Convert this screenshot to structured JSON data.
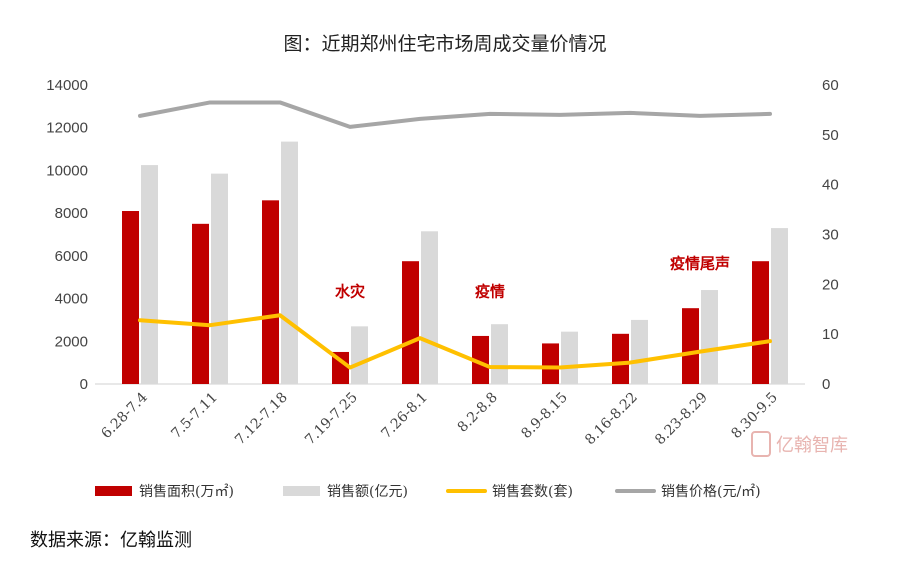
{
  "chart_data": {
    "type": "bar",
    "title": "图：近期郑州住宅市场周成交量价情况",
    "categories": [
      "6.28-7.4",
      "7.5-7.11",
      "7.12-7.18",
      "7.19-7.25",
      "7.26-8.1",
      "8.2-8.8",
      "8.9-8.15",
      "8.16-8.22",
      "8.23-8.29",
      "8.30-9.5"
    ],
    "ylim_left": [
      0,
      14000
    ],
    "yticks_left": [
      "0",
      "2000",
      "4000",
      "6000",
      "8000",
      "10000",
      "12000",
      "14000"
    ],
    "ylim_right": [
      0,
      60
    ],
    "yticks_right": [
      "0",
      "10",
      "20",
      "30",
      "40",
      "50",
      "60"
    ],
    "series": [
      {
        "name": "销售面积(万㎡)",
        "type": "bar",
        "axis": "left",
        "color": "#c00000",
        "values": [
          8100,
          7500,
          8600,
          1500,
          5750,
          2250,
          1900,
          2350,
          3550,
          5750
        ]
      },
      {
        "name": "销售额(亿元)",
        "type": "bar",
        "axis": "left",
        "color": "#d9d9d9",
        "values": [
          10250,
          9850,
          11350,
          2700,
          7150,
          2800,
          2450,
          3000,
          4400,
          7300
        ]
      },
      {
        "name": "销售套数(套)",
        "type": "line",
        "axis": "right",
        "color": "#ffc000",
        "values": [
          12.8,
          11.8,
          13.8,
          3.3,
          9.2,
          3.4,
          3.3,
          4.3,
          6.5,
          8.6
        ]
      },
      {
        "name": "销售价格(元/㎡)",
        "type": "line",
        "axis": "right",
        "color": "#a6a6a6",
        "values": [
          53.8,
          56.5,
          56.5,
          51.6,
          53.2,
          54.2,
          54.0,
          54.4,
          53.8,
          54.2
        ]
      }
    ],
    "annotations": [
      {
        "text": "水灾",
        "category_index": 3,
        "value_left": 4100
      },
      {
        "text": "疫情",
        "category_index": 5,
        "value_left": 4100
      },
      {
        "text": "疫情尾声",
        "category_index": 8,
        "value_left": 5400
      }
    ],
    "legend_position": "bottom",
    "grid": false
  },
  "source": "数据来源：亿翰监测",
  "watermark": "亿翰智库"
}
